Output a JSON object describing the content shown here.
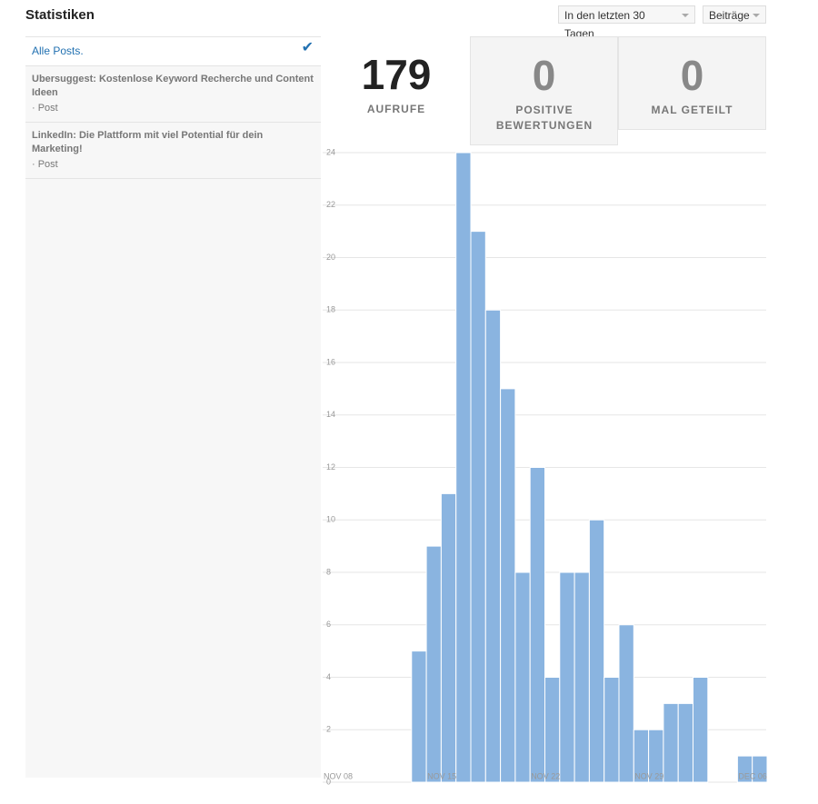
{
  "header": {
    "title": "Statistiken",
    "filters": [
      "In den letzten 30 Tagen",
      "Beiträge"
    ]
  },
  "posts": [
    {
      "title": "Alle Posts."
    },
    {
      "title": "Ubersuggest: Kostenlose Keyword Recherche und Content Ideen",
      "meta": "· Post"
    },
    {
      "title": "LinkedIn: Die Plattform mit viel Potential für dein Marketing!",
      "meta": "· Post"
    }
  ],
  "stats": [
    {
      "value": "179",
      "label": "AUFRUFE"
    },
    {
      "value": "0",
      "label": "POSITIVE BEWERTUNGEN"
    },
    {
      "value": "0",
      "label": "MAL GETEILT"
    }
  ],
  "chart_data": {
    "type": "bar",
    "color": "#8ab4e0",
    "grid": true,
    "categories": [
      "NOV 08",
      null,
      null,
      null,
      null,
      null,
      null,
      "NOV 15",
      null,
      null,
      null,
      null,
      null,
      null,
      "NOV 22",
      null,
      null,
      null,
      null,
      null,
      null,
      "NOV 29",
      null,
      null,
      null,
      null,
      null,
      null,
      "DEC 06",
      null
    ],
    "values": [
      0,
      0,
      0,
      0,
      0,
      0,
      5,
      9,
      11,
      24,
      21,
      18,
      15,
      8,
      12,
      4,
      8,
      8,
      10,
      4,
      6,
      2,
      2,
      3,
      3,
      4,
      0,
      0,
      1,
      1
    ],
    "ylim": [
      0,
      24
    ],
    "yticks": [
      0,
      2,
      4,
      6,
      8,
      10,
      12,
      14,
      16,
      18,
      20,
      22,
      24
    ]
  }
}
